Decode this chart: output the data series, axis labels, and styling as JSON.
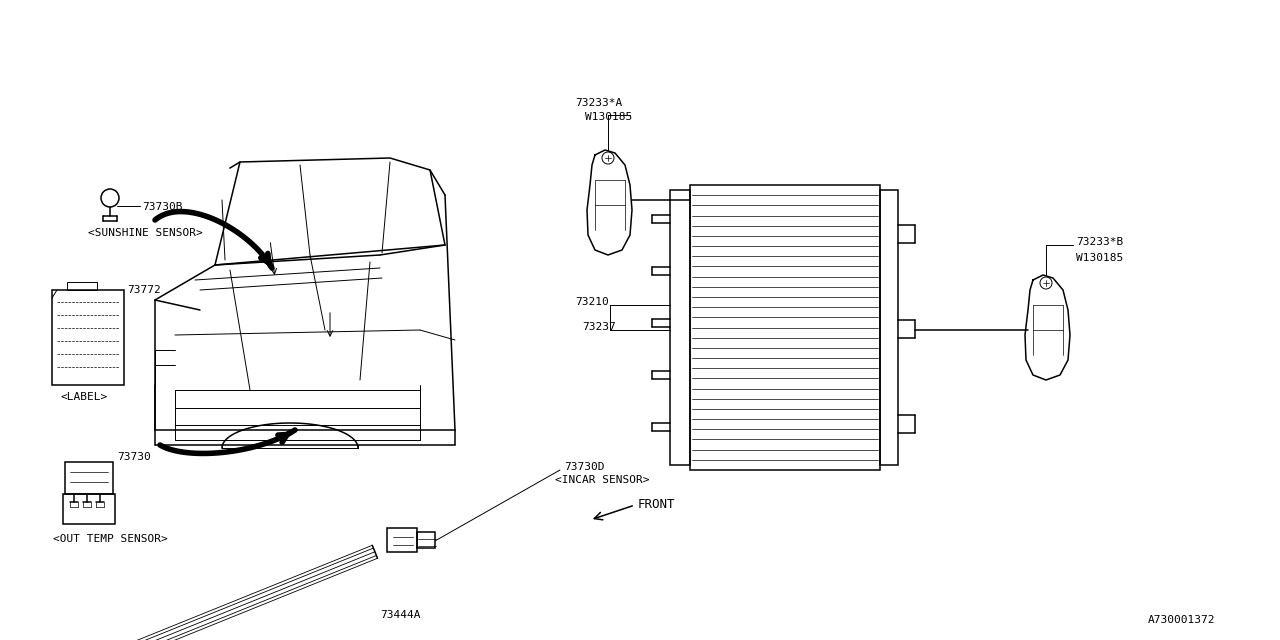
{
  "bg_color": "#ffffff",
  "line_color": "#000000",
  "diagram_id": "A730001372",
  "parts": {
    "sunshine_sensor": {
      "label": "73730B",
      "sublabel": "<SUNSHINE SENSOR>"
    },
    "label_part": {
      "label": "73772",
      "sublabel": "<LABEL>"
    },
    "out_temp_sensor": {
      "label": "73730",
      "sublabel": "<OUT TEMP SENSOR>"
    },
    "incar_sensor": {
      "label": "73730D",
      "sublabel": "<INCAR SENSOR>"
    },
    "tube": {
      "label": "73444A"
    },
    "condenser_left": {
      "label": "73210"
    },
    "condenser_bottom": {
      "label": "73237"
    },
    "receiver_top": {
      "label": "73233*A",
      "sublabel": "W130185"
    },
    "receiver_bottom": {
      "label": "73233*B",
      "sublabel": "W130185"
    },
    "front_label": "FRONT"
  }
}
